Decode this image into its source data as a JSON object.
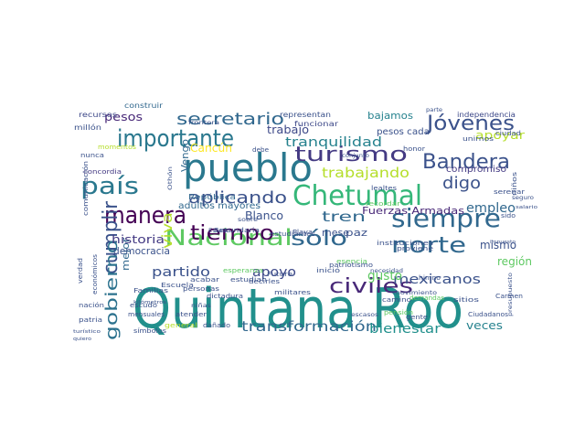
{
  "word_cloud": {
    "words": [
      {
        "text": "Quintana Roo",
        "color": "#21908c"
      },
      {
        "text": "pueblo",
        "color": "#2a788e"
      },
      {
        "text": "Chetumal",
        "color": "#35b779"
      },
      {
        "text": "siempre",
        "color": "#31688e"
      },
      {
        "text": "país",
        "color": "#2a788e"
      },
      {
        "text": "manera",
        "color": "#440154"
      },
      {
        "text": "importante",
        "color": "#2a788e"
      },
      {
        "text": "Nacional",
        "color": "#5ec962"
      },
      {
        "text": "norte",
        "color": "#31688e"
      },
      {
        "text": "turismo",
        "color": "#443a83"
      },
      {
        "text": "Bandera",
        "color": "#3b528b"
      },
      {
        "text": "civiles",
        "color": "#482878"
      },
      {
        "text": "tiempo",
        "color": "#440154"
      },
      {
        "text": "sólo",
        "color": "#31688e"
      },
      {
        "text": "Jóvenes",
        "color": "#3b528b"
      },
      {
        "text": "cumplir",
        "color": "#3b528b"
      },
      {
        "text": "gobierno",
        "color": "#2c728e"
      },
      {
        "text": "aplicando",
        "color": "#3b528b"
      },
      {
        "text": "secretario",
        "color": "#31688e"
      },
      {
        "text": "transformación",
        "color": "#31688e"
      },
      {
        "text": "trabajando",
        "color": "#b5de2b"
      },
      {
        "text": "tren",
        "color": "#31688e"
      },
      {
        "text": "digo",
        "color": "#3b528b"
      },
      {
        "text": "mexicanos",
        "color": "#3b528b"
      },
      {
        "text": "bienestar",
        "color": "#21908c"
      },
      {
        "text": "viva",
        "color": "#b5de2b"
      },
      {
        "text": "tranquilidad",
        "color": "#26828e"
      },
      {
        "text": "apoyo",
        "color": "#3e4989"
      },
      {
        "text": "partido",
        "color": "#3b528b"
      },
      {
        "text": "historia",
        "color": "#443a83"
      },
      {
        "text": "empleo",
        "color": "#31688e"
      },
      {
        "text": "mismo",
        "color": "#3b528b"
      },
      {
        "text": "región",
        "color": "#5ec962"
      },
      {
        "text": "gusto",
        "color": "#5ec962"
      },
      {
        "text": "veces",
        "color": "#26828e"
      },
      {
        "text": "trabajo",
        "color": "#3e4989"
      },
      {
        "text": "pesos",
        "color": "#482878"
      },
      {
        "text": "mejor",
        "color": "#31688e"
      },
      {
        "text": "Vengo",
        "color": "#31688e"
      },
      {
        "text": "Blanco",
        "color": "#3b528b"
      },
      {
        "text": "Cancún",
        "color": "#fde725"
      },
      {
        "text": "apoyar",
        "color": "#b5de2b"
      },
      {
        "text": "compromiso",
        "color": "#443a83"
      },
      {
        "text": "democracia",
        "color": "#3b528b"
      },
      {
        "text": "Fuerzas Armadas",
        "color": "#482878"
      },
      {
        "text": "mese",
        "color": "#3b528b"
      },
      {
        "text": "paz",
        "color": "#3b528b"
      },
      {
        "text": "bajamos",
        "color": "#26828e"
      },
      {
        "text": "adultos mayores",
        "color": "#31688e"
      },
      {
        "text": "pesos cada",
        "color": "#3b528b"
      },
      {
        "text": "independencia",
        "color": "#3e4989"
      },
      {
        "text": "recursos",
        "color": "#3e4989"
      },
      {
        "text": "construir",
        "color": "#31688e"
      },
      {
        "text": "representan",
        "color": "#3b528b"
      },
      {
        "text": "funcionar",
        "color": "#3e4989"
      },
      {
        "text": "millón",
        "color": "#3b528b"
      },
      {
        "text": "momentos",
        "color": "#b5de2b"
      },
      {
        "text": "nunca",
        "color": "#3b528b"
      },
      {
        "text": "concordia",
        "color": "#443a83"
      },
      {
        "text": "República",
        "color": "#31688e"
      },
      {
        "text": "Secundaria",
        "color": "#3b528b"
      },
      {
        "text": "acabar",
        "color": "#3b528b"
      },
      {
        "text": "dictadura",
        "color": "#3b528b"
      },
      {
        "text": "personas",
        "color": "#3b528b"
      },
      {
        "text": "estudiantes",
        "color": "#3b528b"
      },
      {
        "text": "lealtes",
        "color": "#3b528b"
      },
      {
        "text": "recordar",
        "color": "#5ec962"
      },
      {
        "text": "honor",
        "color": "#3b528b"
      },
      {
        "text": "unirnos",
        "color": "#3b528b"
      },
      {
        "text": "ciudad",
        "color": "#3b528b"
      },
      {
        "text": "serenar",
        "color": "#3b528b"
      },
      {
        "text": "niños",
        "color": "#3b528b"
      },
      {
        "text": "sido",
        "color": "#3b528b"
      },
      {
        "text": "instituciones",
        "color": "#3b528b"
      },
      {
        "text": "necesidad",
        "color": "#3b528b"
      },
      {
        "text": "movimiento",
        "color": "#3b528b"
      },
      {
        "text": "proviene",
        "color": "#3b528b"
      },
      {
        "text": "sitios",
        "color": "#3b528b"
      },
      {
        "text": "esperanza",
        "color": "#5ec962"
      },
      {
        "text": "Futuro",
        "color": "#3b528b"
      },
      {
        "text": "estudian",
        "color": "#3b528b"
      },
      {
        "text": "militares",
        "color": "#3b528b"
      },
      {
        "text": "inició",
        "color": "#3b528b"
      },
      {
        "text": "esencia",
        "color": "#5ec962"
      },
      {
        "text": "himno",
        "color": "#3b528b"
      },
      {
        "text": "Escuela",
        "color": "#3b528b"
      },
      {
        "text": "Familias",
        "color": "#3b528b"
      },
      {
        "text": "escudo",
        "color": "#3b528b"
      },
      {
        "text": "nación",
        "color": "#3b528b"
      },
      {
        "text": "patria",
        "color": "#3b528b"
      },
      {
        "text": "atender",
        "color": "#3b528b"
      },
      {
        "text": "dañado",
        "color": "#3b528b"
      },
      {
        "text": "general",
        "color": "#b5de2b"
      },
      {
        "text": "símbolos",
        "color": "#3b528b"
      },
      {
        "text": "camino",
        "color": "#3b528b"
      },
      {
        "text": "pensión",
        "color": "#5ec962"
      },
      {
        "text": "Carmen",
        "color": "#3b528b"
      },
      {
        "text": "presupuesto",
        "color": "#3b528b"
      },
      {
        "text": "Playa",
        "color": "#3b528b"
      },
      {
        "text": "patriotismo",
        "color": "#3b528b"
      },
      {
        "text": "gente",
        "color": "#3b528b"
      },
      {
        "text": "Ciudadanos",
        "color": "#3b528b"
      },
      {
        "text": "demandas",
        "color": "#5ec962"
      },
      {
        "text": "comunicación",
        "color": "#3b528b"
      },
      {
        "text": "decirles",
        "color": "#3b528b"
      },
      {
        "text": "mensuales",
        "color": "#3b528b"
      },
      {
        "text": "verdad",
        "color": "#3b528b"
      },
      {
        "text": "económicos",
        "color": "#3b528b"
      },
      {
        "text": "Othón",
        "color": "#3b528b"
      },
      {
        "text": "debe",
        "color": "#3b528b"
      },
      {
        "text": "seguro",
        "color": "#3b528b"
      },
      {
        "text": "parte",
        "color": "#3b528b"
      },
      {
        "text": "frontera",
        "color": "#3b528b"
      },
      {
        "text": "kilómetros",
        "color": "#3b528b"
      },
      {
        "text": "niñas",
        "color": "#3b528b"
      },
      {
        "text": "sobre",
        "color": "#3b528b"
      },
      {
        "text": "conjunto",
        "color": "#3b528b"
      },
      {
        "text": "Estado",
        "color": "#3b528b"
      },
      {
        "text": "impuesto",
        "color": "#3b528b"
      },
      {
        "text": "salario",
        "color": "#3b528b"
      },
      {
        "text": "escasos",
        "color": "#3b528b"
      },
      {
        "text": "turístico",
        "color": "#3b528b"
      },
      {
        "text": "quiero",
        "color": "#3b528b"
      }
    ]
  }
}
